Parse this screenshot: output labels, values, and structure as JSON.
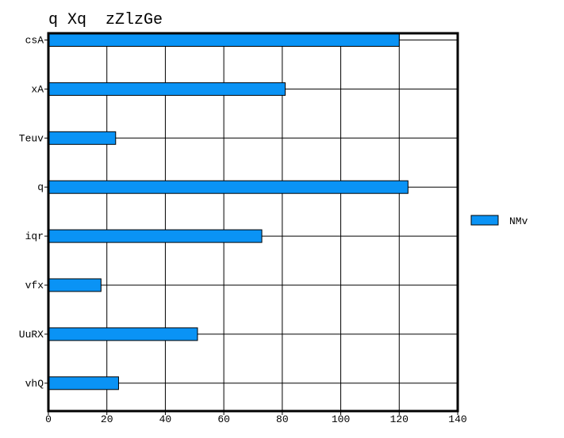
{
  "chart_data": {
    "type": "bar",
    "orientation": "horizontal",
    "title": "q Xq  zZlzGe",
    "xlabel": "",
    "ylabel": "",
    "categories": [
      "csA",
      "xA",
      "Teuv",
      "q",
      "iqr",
      "vfx",
      "UuRX",
      "vhQ"
    ],
    "series": [
      {
        "name": "NMv",
        "values": [
          120,
          81,
          23,
          123,
          73,
          18,
          51,
          24
        ],
        "color": "#0a93f5"
      }
    ],
    "xlim": [
      0,
      140
    ],
    "xticks": [
      0,
      20,
      40,
      60,
      80,
      100,
      120,
      140
    ],
    "grid": true,
    "legend_position": "right"
  }
}
